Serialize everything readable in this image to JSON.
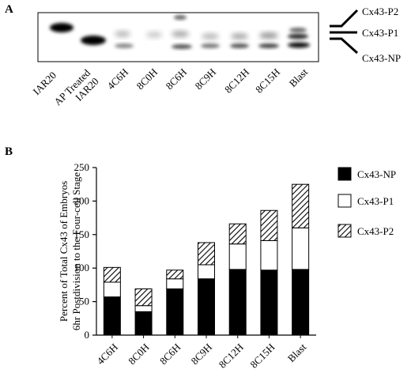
{
  "panel_a": {
    "label": "A",
    "lanes": [
      "IAR20",
      "AP Treated\nIAR20",
      "4C6H",
      "8C0H",
      "8C6H",
      "8C9H",
      "8C12H",
      "8C15H",
      "Blast"
    ],
    "band_labels": [
      "Cx43-P2",
      "Cx43-P1",
      "Cx43-NP"
    ]
  },
  "panel_b": {
    "label": "B"
  },
  "chart_data": {
    "type": "bar",
    "stacked": true,
    "categories": [
      "4C6H",
      "8C0H",
      "8C6H",
      "8C9H",
      "8C12H",
      "8C15H",
      "Blast"
    ],
    "series": [
      {
        "name": "Cx43-NP",
        "values": [
          57,
          35,
          69,
          84,
          98,
          97,
          98
        ],
        "color": "#000000",
        "pattern": "solid"
      },
      {
        "name": "Cx43-P1",
        "values": [
          22,
          9,
          15,
          21,
          38,
          44,
          62
        ],
        "color": "#ffffff",
        "pattern": "open"
      },
      {
        "name": "Cx43-P2",
        "values": [
          22,
          25,
          13,
          33,
          30,
          45,
          65
        ],
        "color": "#ffffff",
        "pattern": "hatched"
      }
    ],
    "ylabel": "Percent of Total Cx43 of Embryos\n6hr Postdivision to the Four-cell Stage",
    "xlabel": "",
    "ylim": [
      0,
      250
    ],
    "yticks": [
      0,
      50,
      100,
      150,
      200,
      250
    ],
    "legend": "right",
    "grid": false
  }
}
